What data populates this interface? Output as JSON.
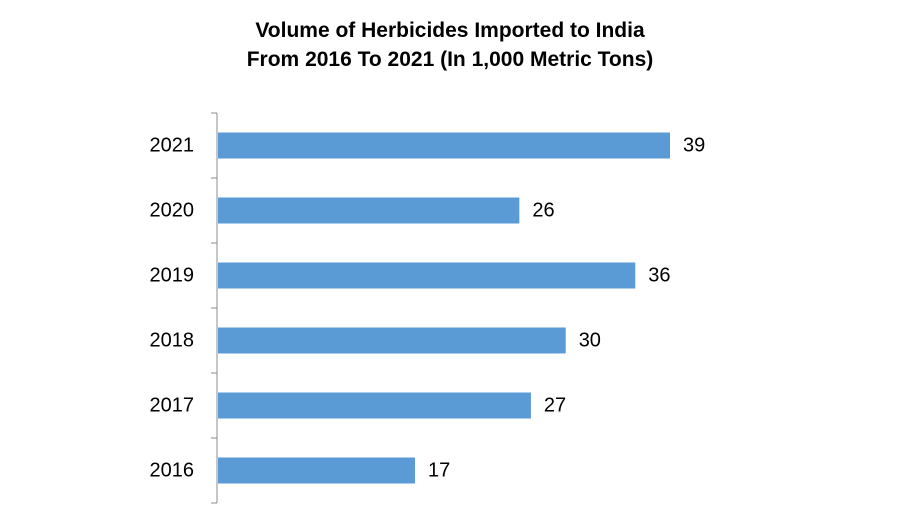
{
  "title": [
    "Volume of Herbicides Imported to India",
    "From 2016 To 2021 (In 1,000 Metric Tons)"
  ],
  "colors": {
    "bar": "#5B9BD5",
    "axis": "#8C8C8C",
    "text": "#000000"
  },
  "chart_data": {
    "type": "bar",
    "orientation": "horizontal",
    "title": "Volume of Herbicides Imported to India From 2016 To 2021 (In 1,000 Metric Tons)",
    "categories": [
      "2021",
      "2020",
      "2019",
      "2018",
      "2017",
      "2016"
    ],
    "values": [
      39,
      26,
      36,
      30,
      27,
      17
    ],
    "data_labels": true,
    "xlabel": "",
    "ylabel": "",
    "grid": false,
    "legend": "none"
  }
}
